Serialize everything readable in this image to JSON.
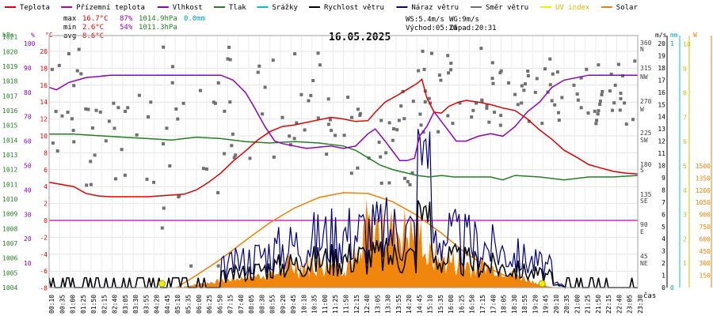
{
  "chart_data": {
    "type": "line",
    "title": "16.05.2025",
    "xlabel": "čas",
    "legend": [
      {
        "label": "Teplota",
        "color": "#e00000"
      },
      {
        "label": "Přízemní teplota",
        "color": "#b000b0"
      },
      {
        "label": "Vlhkost",
        "color": "#9000c0"
      },
      {
        "label": "Tlak",
        "color": "#208020"
      },
      {
        "label": "Srážky",
        "color": "#00c0e0"
      },
      {
        "label": "Rychlost větru",
        "color": "#000000"
      },
      {
        "label": "Náraz větru",
        "color": "#000080"
      },
      {
        "label": "Směr větru",
        "color": "#707070"
      },
      {
        "label": "UV index",
        "color": "#f0f000"
      },
      {
        "label": "Solar",
        "color": "#f08000"
      }
    ],
    "stats": {
      "max_label": "max",
      "min_label": "min",
      "avg_label": "avg",
      "max_temp": "16.7°C",
      "max_hum": "87%",
      "max_press": "1014.9hPa",
      "max_rain": "0.0mm",
      "min_temp": "2.6°C",
      "min_hum": "54%",
      "min_press": "1011.3hPa",
      "avg_temp": "8.6°C",
      "ws": "WS:5.4m/s",
      "wg": "WG:9m/s",
      "sunrise": "Východ:05:10",
      "sunset": "Západ:20:31"
    },
    "axes": {
      "hpa": {
        "unit": "hPa",
        "ticks": [
          "1021",
          "1020",
          "1019",
          "1018",
          "1017",
          "1016",
          "1015",
          "1014",
          "1013",
          "1012",
          "1011",
          "1010",
          "1009",
          "1008",
          "1007",
          "1006",
          "1005",
          "1004"
        ]
      },
      "pct": {
        "unit": "%",
        "ticks": [
          "100",
          "90",
          "80",
          "70",
          "60",
          "50",
          "40",
          "30",
          "20",
          "10"
        ]
      },
      "temp": {
        "unit": "°C",
        "ticks": [
          "20",
          "18",
          "16",
          "14",
          "12",
          "10",
          "8",
          "6",
          "4",
          "2",
          "0",
          "-2",
          "-4",
          "-6",
          "-8"
        ]
      },
      "dir": {
        "ticks": [
          "360",
          "N",
          "315",
          "NW",
          "270",
          "W",
          "225",
          "SW",
          "180",
          "S",
          "135",
          "SE",
          "90",
          "E",
          "45",
          "NE"
        ]
      },
      "ms": {
        "unit": "m/s",
        "ticks": [
          "20",
          "19",
          "18",
          "17",
          "16",
          "15",
          "14",
          "13",
          "12",
          "11",
          "10",
          "9",
          "8",
          "7",
          "6",
          "5",
          "4",
          "3",
          "2",
          "1",
          "0"
        ]
      },
      "mm": {
        "unit": "mm",
        "ticks": [
          "1",
          "0"
        ]
      },
      "w": {
        "unit": "W",
        "ticks": [
          "1500",
          "1350",
          "1200",
          "1050",
          "900",
          "750",
          "600",
          "450",
          "300",
          "150"
        ]
      }
    },
    "x_ticks": [
      "00:10",
      "00:35",
      "01:00",
      "01:25",
      "01:50",
      "02:15",
      "02:40",
      "03:05",
      "03:30",
      "03:55",
      "04:20",
      "04:45",
      "05:10",
      "05:35",
      "06:00",
      "06:25",
      "06:50",
      "07:15",
      "07:40",
      "08:05",
      "08:30",
      "08:55",
      "09:20",
      "09:45",
      "10:10",
      "10:35",
      "11:00",
      "11:25",
      "11:50",
      "12:15",
      "12:40",
      "13:05",
      "13:30",
      "13:55",
      "14:20",
      "14:45",
      "15:10",
      "15:35",
      "16:00",
      "16:25",
      "16:50",
      "17:15",
      "17:40",
      "18:05",
      "18:30",
      "18:55",
      "19:20",
      "19:45",
      "20:10",
      "20:35",
      "21:00",
      "21:25",
      "21:50",
      "22:15",
      "22:40",
      "23:05",
      "23:30"
    ],
    "x_range_hours": [
      0,
      24
    ],
    "series": {
      "teplota": {
        "unit": "°C",
        "points": [
          [
            0,
            4.5
          ],
          [
            1,
            4.0
          ],
          [
            1.5,
            3.2
          ],
          [
            2,
            2.9
          ],
          [
            2.5,
            2.8
          ],
          [
            3,
            2.8
          ],
          [
            4,
            2.8
          ],
          [
            4.5,
            2.9
          ],
          [
            5,
            3.0
          ],
          [
            5.5,
            3.1
          ],
          [
            6,
            3.6
          ],
          [
            6.5,
            4.5
          ],
          [
            7,
            5.6
          ],
          [
            7.5,
            7.0
          ],
          [
            8,
            8.2
          ],
          [
            8.5,
            9.5
          ],
          [
            9,
            10.5
          ],
          [
            9.5,
            11.1
          ],
          [
            10,
            11.3
          ],
          [
            10.5,
            11.6
          ],
          [
            11,
            11.9
          ],
          [
            11.5,
            12.2
          ],
          [
            12,
            12.0
          ],
          [
            12.5,
            11.7
          ],
          [
            13,
            11.8
          ],
          [
            13.3,
            12.8
          ],
          [
            13.7,
            14.0
          ],
          [
            14.2,
            14.8
          ],
          [
            14.6,
            15.5
          ],
          [
            15,
            16.2
          ],
          [
            15.2,
            16.7
          ],
          [
            15.4,
            14.5
          ],
          [
            15.7,
            12.8
          ],
          [
            16,
            12.7
          ],
          [
            16.3,
            13.5
          ],
          [
            16.7,
            14.0
          ],
          [
            17,
            14.2
          ],
          [
            17.5,
            14.0
          ],
          [
            18,
            13.7
          ],
          [
            18.5,
            13.3
          ],
          [
            19,
            13.0
          ],
          [
            19.5,
            12.0
          ],
          [
            20,
            10.7
          ],
          [
            20.5,
            9.6
          ],
          [
            21,
            8.3
          ],
          [
            21.5,
            7.5
          ],
          [
            22,
            6.6
          ],
          [
            22.5,
            6.2
          ],
          [
            23,
            5.8
          ],
          [
            23.5,
            5.6
          ],
          [
            24,
            5.5
          ]
        ]
      },
      "vlhkost": {
        "unit": "%",
        "points": [
          [
            0,
            82
          ],
          [
            0.3,
            81
          ],
          [
            0.8,
            84
          ],
          [
            1.5,
            86
          ],
          [
            2.5,
            87
          ],
          [
            4,
            87
          ],
          [
            5,
            87
          ],
          [
            6,
            87
          ],
          [
            7,
            87
          ],
          [
            7.5,
            85
          ],
          [
            8,
            80
          ],
          [
            8.3,
            75
          ],
          [
            8.8,
            66
          ],
          [
            9.2,
            60
          ],
          [
            9.5,
            59
          ],
          [
            10,
            58
          ],
          [
            10.5,
            57
          ],
          [
            11,
            57.5
          ],
          [
            11.5,
            58
          ],
          [
            12,
            57
          ],
          [
            12.5,
            58
          ],
          [
            13,
            63
          ],
          [
            13.3,
            65
          ],
          [
            13.7,
            60
          ],
          [
            14,
            56
          ],
          [
            14.3,
            52
          ],
          [
            14.6,
            52
          ],
          [
            14.9,
            53
          ],
          [
            15.1,
            62
          ],
          [
            15.4,
            66
          ],
          [
            15.7,
            72
          ],
          [
            16,
            68
          ],
          [
            16.3,
            64
          ],
          [
            16.6,
            60
          ],
          [
            17,
            60
          ],
          [
            17.5,
            62
          ],
          [
            18,
            63
          ],
          [
            18.5,
            62
          ],
          [
            19,
            66
          ],
          [
            19.5,
            72
          ],
          [
            20,
            76
          ],
          [
            20.5,
            82
          ],
          [
            21,
            85
          ],
          [
            21.5,
            86
          ],
          [
            22,
            87
          ],
          [
            23,
            87
          ],
          [
            24,
            87
          ]
        ]
      },
      "tlak": {
        "unit": "hPa",
        "points": [
          [
            0,
            1014.4
          ],
          [
            1,
            1014.4
          ],
          [
            2,
            1014.3
          ],
          [
            3,
            1014.2
          ],
          [
            4,
            1014.1
          ],
          [
            5,
            1014.0
          ],
          [
            6,
            1014.2
          ],
          [
            7,
            1014.1
          ],
          [
            8,
            1013.9
          ],
          [
            9,
            1013.8
          ],
          [
            10,
            1013.9
          ],
          [
            11,
            1013.8
          ],
          [
            12,
            1013.6
          ],
          [
            12.5,
            1013.3
          ],
          [
            13,
            1012.8
          ],
          [
            13.5,
            1012.3
          ],
          [
            14,
            1012.0
          ],
          [
            14.5,
            1011.8
          ],
          [
            15,
            1011.6
          ],
          [
            15.5,
            1011.5
          ],
          [
            16,
            1011.6
          ],
          [
            16.5,
            1011.5
          ],
          [
            17,
            1011.5
          ],
          [
            17.5,
            1011.5
          ],
          [
            18,
            1011.5
          ],
          [
            18.5,
            1011.3
          ],
          [
            19,
            1011.6
          ],
          [
            20,
            1011.5
          ],
          [
            21,
            1011.3
          ],
          [
            22,
            1011.5
          ],
          [
            23,
            1011.5
          ],
          [
            24,
            1011.6
          ]
        ]
      },
      "solar": {
        "unit": "W/m²",
        "points": [
          [
            5.2,
            0
          ],
          [
            6,
            150
          ],
          [
            7,
            350
          ],
          [
            8,
            580
          ],
          [
            9,
            800
          ],
          [
            10,
            980
          ],
          [
            11,
            1110
          ],
          [
            12,
            1170
          ],
          [
            13,
            1160
          ],
          [
            14,
            1060
          ],
          [
            15,
            890
          ],
          [
            16,
            670
          ],
          [
            17,
            420
          ],
          [
            18,
            230
          ],
          [
            19,
            90
          ],
          [
            20,
            20
          ],
          [
            20.5,
            0
          ]
        ]
      }
    },
    "wind_dir_points_count": 220,
    "uv_markers": [
      {
        "x": 4.6
      },
      {
        "x": 20.1
      }
    ]
  }
}
